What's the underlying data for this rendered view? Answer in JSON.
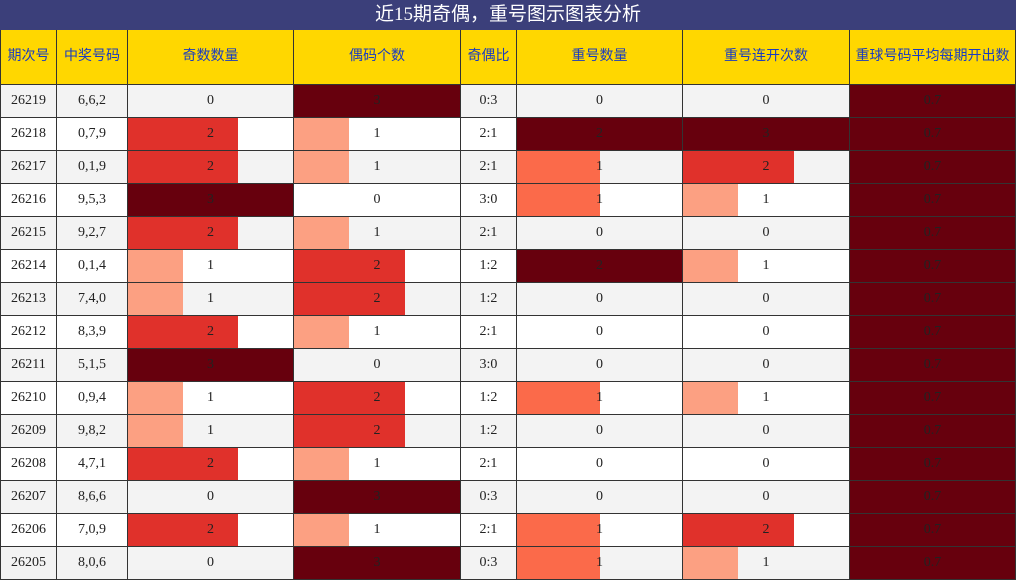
{
  "header": {
    "title": "近15期奇偶，重号图示图表分析"
  },
  "table": {
    "columns": [
      "期次号",
      "中奖号码",
      "奇数数量",
      "偶码个数",
      "奇偶比",
      "重号数量",
      "重号连开次数",
      "重球号码平均每期开出数"
    ],
    "rows": [
      [
        "26219",
        "6,6,2",
        0,
        3,
        "0:3",
        0,
        0,
        0.7
      ],
      [
        "26218",
        "0,7,9",
        2,
        1,
        "2:1",
        2,
        3,
        0.7
      ],
      [
        "26217",
        "0,1,9",
        2,
        1,
        "2:1",
        1,
        2,
        0.7
      ],
      [
        "26216",
        "9,5,3",
        3,
        0,
        "3:0",
        1,
        1,
        0.7
      ],
      [
        "26215",
        "9,2,7",
        2,
        1,
        "2:1",
        0,
        0,
        0.7
      ],
      [
        "26214",
        "0,1,4",
        1,
        2,
        "1:2",
        2,
        1,
        0.7
      ],
      [
        "26213",
        "7,4,0",
        1,
        2,
        "1:2",
        0,
        0,
        0.7
      ],
      [
        "26212",
        "8,3,9",
        2,
        1,
        "2:1",
        0,
        0,
        0.7
      ],
      [
        "26211",
        "5,1,5",
        3,
        0,
        "3:0",
        0,
        0,
        0.7
      ],
      [
        "26210",
        "0,9,4",
        1,
        2,
        "1:2",
        1,
        1,
        0.7
      ],
      [
        "26209",
        "9,8,2",
        1,
        2,
        "1:2",
        0,
        0,
        0.7
      ],
      [
        "26208",
        "4,7,1",
        2,
        1,
        "2:1",
        0,
        0,
        0.7
      ],
      [
        "26207",
        "8,6,6",
        0,
        3,
        "0:3",
        0,
        0,
        0.7
      ],
      [
        "26206",
        "7,0,9",
        2,
        1,
        "2:1",
        1,
        2,
        0.7
      ],
      [
        "26205",
        "8,0,6",
        0,
        3,
        "0:3",
        1,
        1,
        0.7
      ]
    ]
  }
}
